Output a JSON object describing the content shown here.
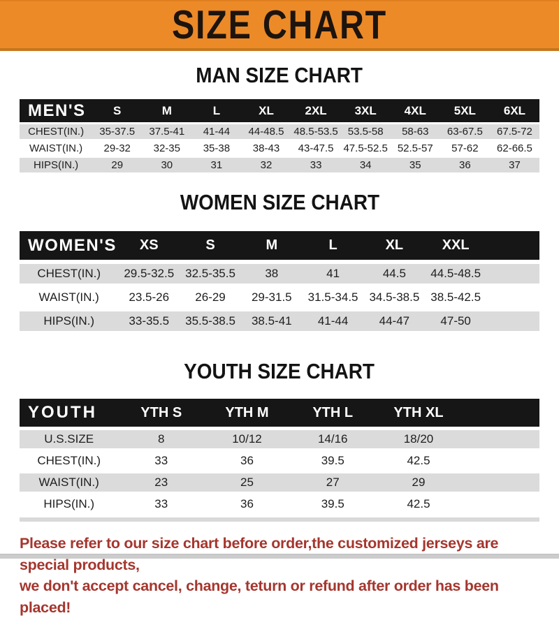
{
  "banner": {
    "title": "SIZE CHART"
  },
  "colors": {
    "banner_bg": "#ec8a28",
    "banner_border": "#c4771c",
    "table_header_bg": "#161616",
    "row_stripe_gray": "#dbdbdb",
    "footer_text_red": "#a5362e"
  },
  "men": {
    "title": "MAN SIZE CHART",
    "corner": "MEN'S",
    "columns": [
      "S",
      "M",
      "L",
      "XL",
      "2XL",
      "3XL",
      "4XL",
      "5XL",
      "6XL"
    ],
    "rows": [
      {
        "label": "CHEST(IN.)",
        "values": [
          "35-37.5",
          "37.5-41",
          "41-44",
          "44-48.5",
          "48.5-53.5",
          "53.5-58",
          "58-63",
          "63-67.5",
          "67.5-72"
        ]
      },
      {
        "label": "WAIST(IN.)",
        "values": [
          "29-32",
          "32-35",
          "35-38",
          "38-43",
          "43-47.5",
          "47.5-52.5",
          "52.5-57",
          "57-62",
          "62-66.5"
        ]
      },
      {
        "label": "HIPS(IN.)",
        "values": [
          "29",
          "30",
          "31",
          "32",
          "33",
          "34",
          "35",
          "36",
          "37"
        ]
      }
    ]
  },
  "women": {
    "title": "WOMEN SIZE CHART",
    "corner": "WOMEN'S",
    "columns": [
      "XS",
      "S",
      "M",
      "L",
      "XL",
      "XXL"
    ],
    "rows": [
      {
        "label": "CHEST(IN.)",
        "values": [
          "29.5-32.5",
          "32.5-35.5",
          "38",
          "41",
          "44.5",
          "44.5-48.5"
        ]
      },
      {
        "label": "WAIST(IN.)",
        "values": [
          "23.5-26",
          "26-29",
          "29-31.5",
          "31.5-34.5",
          "34.5-38.5",
          "38.5-42.5"
        ]
      },
      {
        "label": "HIPS(IN.)",
        "values": [
          "33-35.5",
          "35.5-38.5",
          "38.5-41",
          "41-44",
          "44-47",
          "47-50"
        ]
      }
    ]
  },
  "youth": {
    "title": "YOUTH SIZE CHART",
    "corner": "YOUTH",
    "columns": [
      "YTH S",
      "YTH M",
      "YTH L",
      "YTH XL"
    ],
    "rows": [
      {
        "label": "U.S.SIZE",
        "values": [
          "8",
          "10/12",
          "14/16",
          "18/20"
        ]
      },
      {
        "label": "CHEST(IN.)",
        "values": [
          "33",
          "36",
          "39.5",
          "42.5"
        ]
      },
      {
        "label": "WAIST(IN.)",
        "values": [
          "23",
          "25",
          "27",
          "29"
        ]
      },
      {
        "label": "HIPS(IN.)",
        "values": [
          "33",
          "36",
          "39.5",
          "42.5"
        ]
      }
    ]
  },
  "footer": {
    "line1": "Please refer to our size chart before order,the customized jerseys are special products,",
    "line2": "we don't accept cancel, change, teturn or refund after order has been placed!"
  }
}
